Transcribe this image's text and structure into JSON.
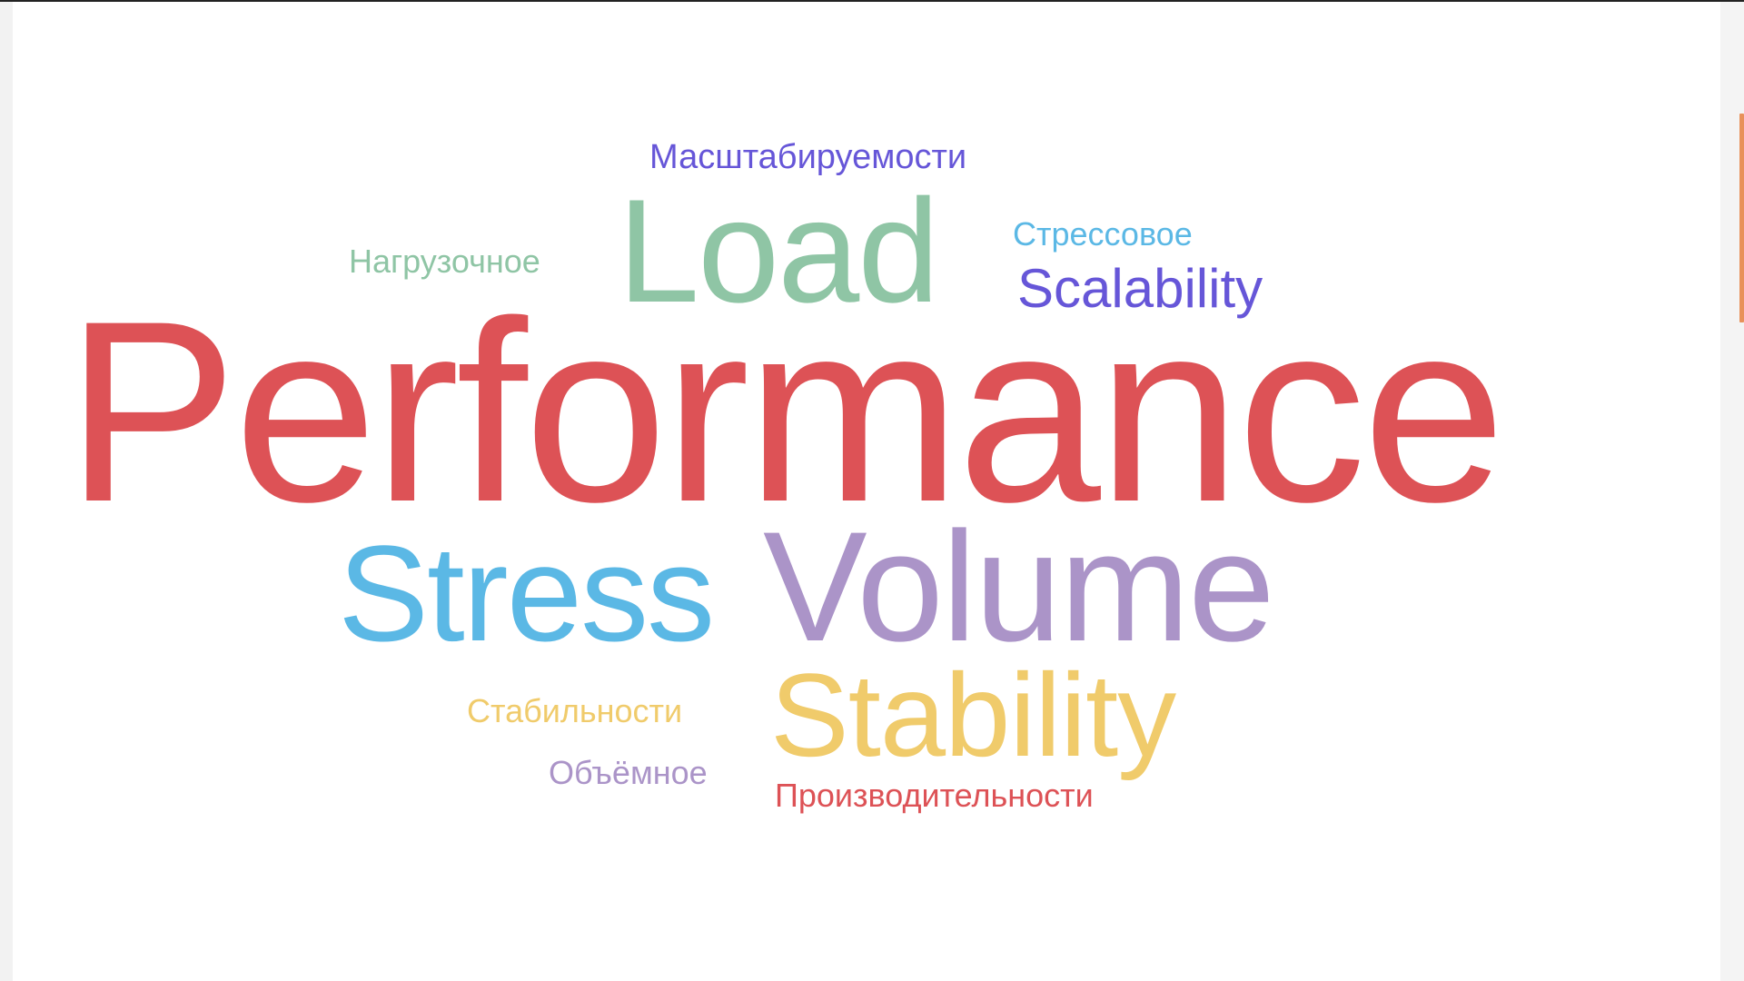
{
  "word_cloud": {
    "words": [
      {
        "id": "performance",
        "text": "Performance",
        "color": "#dd5256"
      },
      {
        "id": "load",
        "text": "Load",
        "color": "#8fc5a5"
      },
      {
        "id": "volume",
        "text": "Volume",
        "color": "#ab94c8"
      },
      {
        "id": "stress",
        "text": "Stress",
        "color": "#5bb8e5"
      },
      {
        "id": "stability",
        "text": "Stability",
        "color": "#f0cb6b"
      },
      {
        "id": "scalability",
        "text": "Scalability",
        "color": "#6656d8"
      },
      {
        "id": "mass",
        "text": "Масштабируемости",
        "color": "#6656d8"
      },
      {
        "id": "stressru",
        "text": "Стрессовое",
        "color": "#5bb8e5"
      },
      {
        "id": "nagr",
        "text": "Нагрузочное",
        "color": "#8fc5a5"
      },
      {
        "id": "stab",
        "text": "Стабильности",
        "color": "#f0cb6b"
      },
      {
        "id": "obyem",
        "text": "Объёмное",
        "color": "#ab94c8"
      },
      {
        "id": "proizv",
        "text": "Производительности",
        "color": "#dd5256"
      }
    ]
  },
  "scrollbar": {
    "accent_color": "#e8915a"
  }
}
